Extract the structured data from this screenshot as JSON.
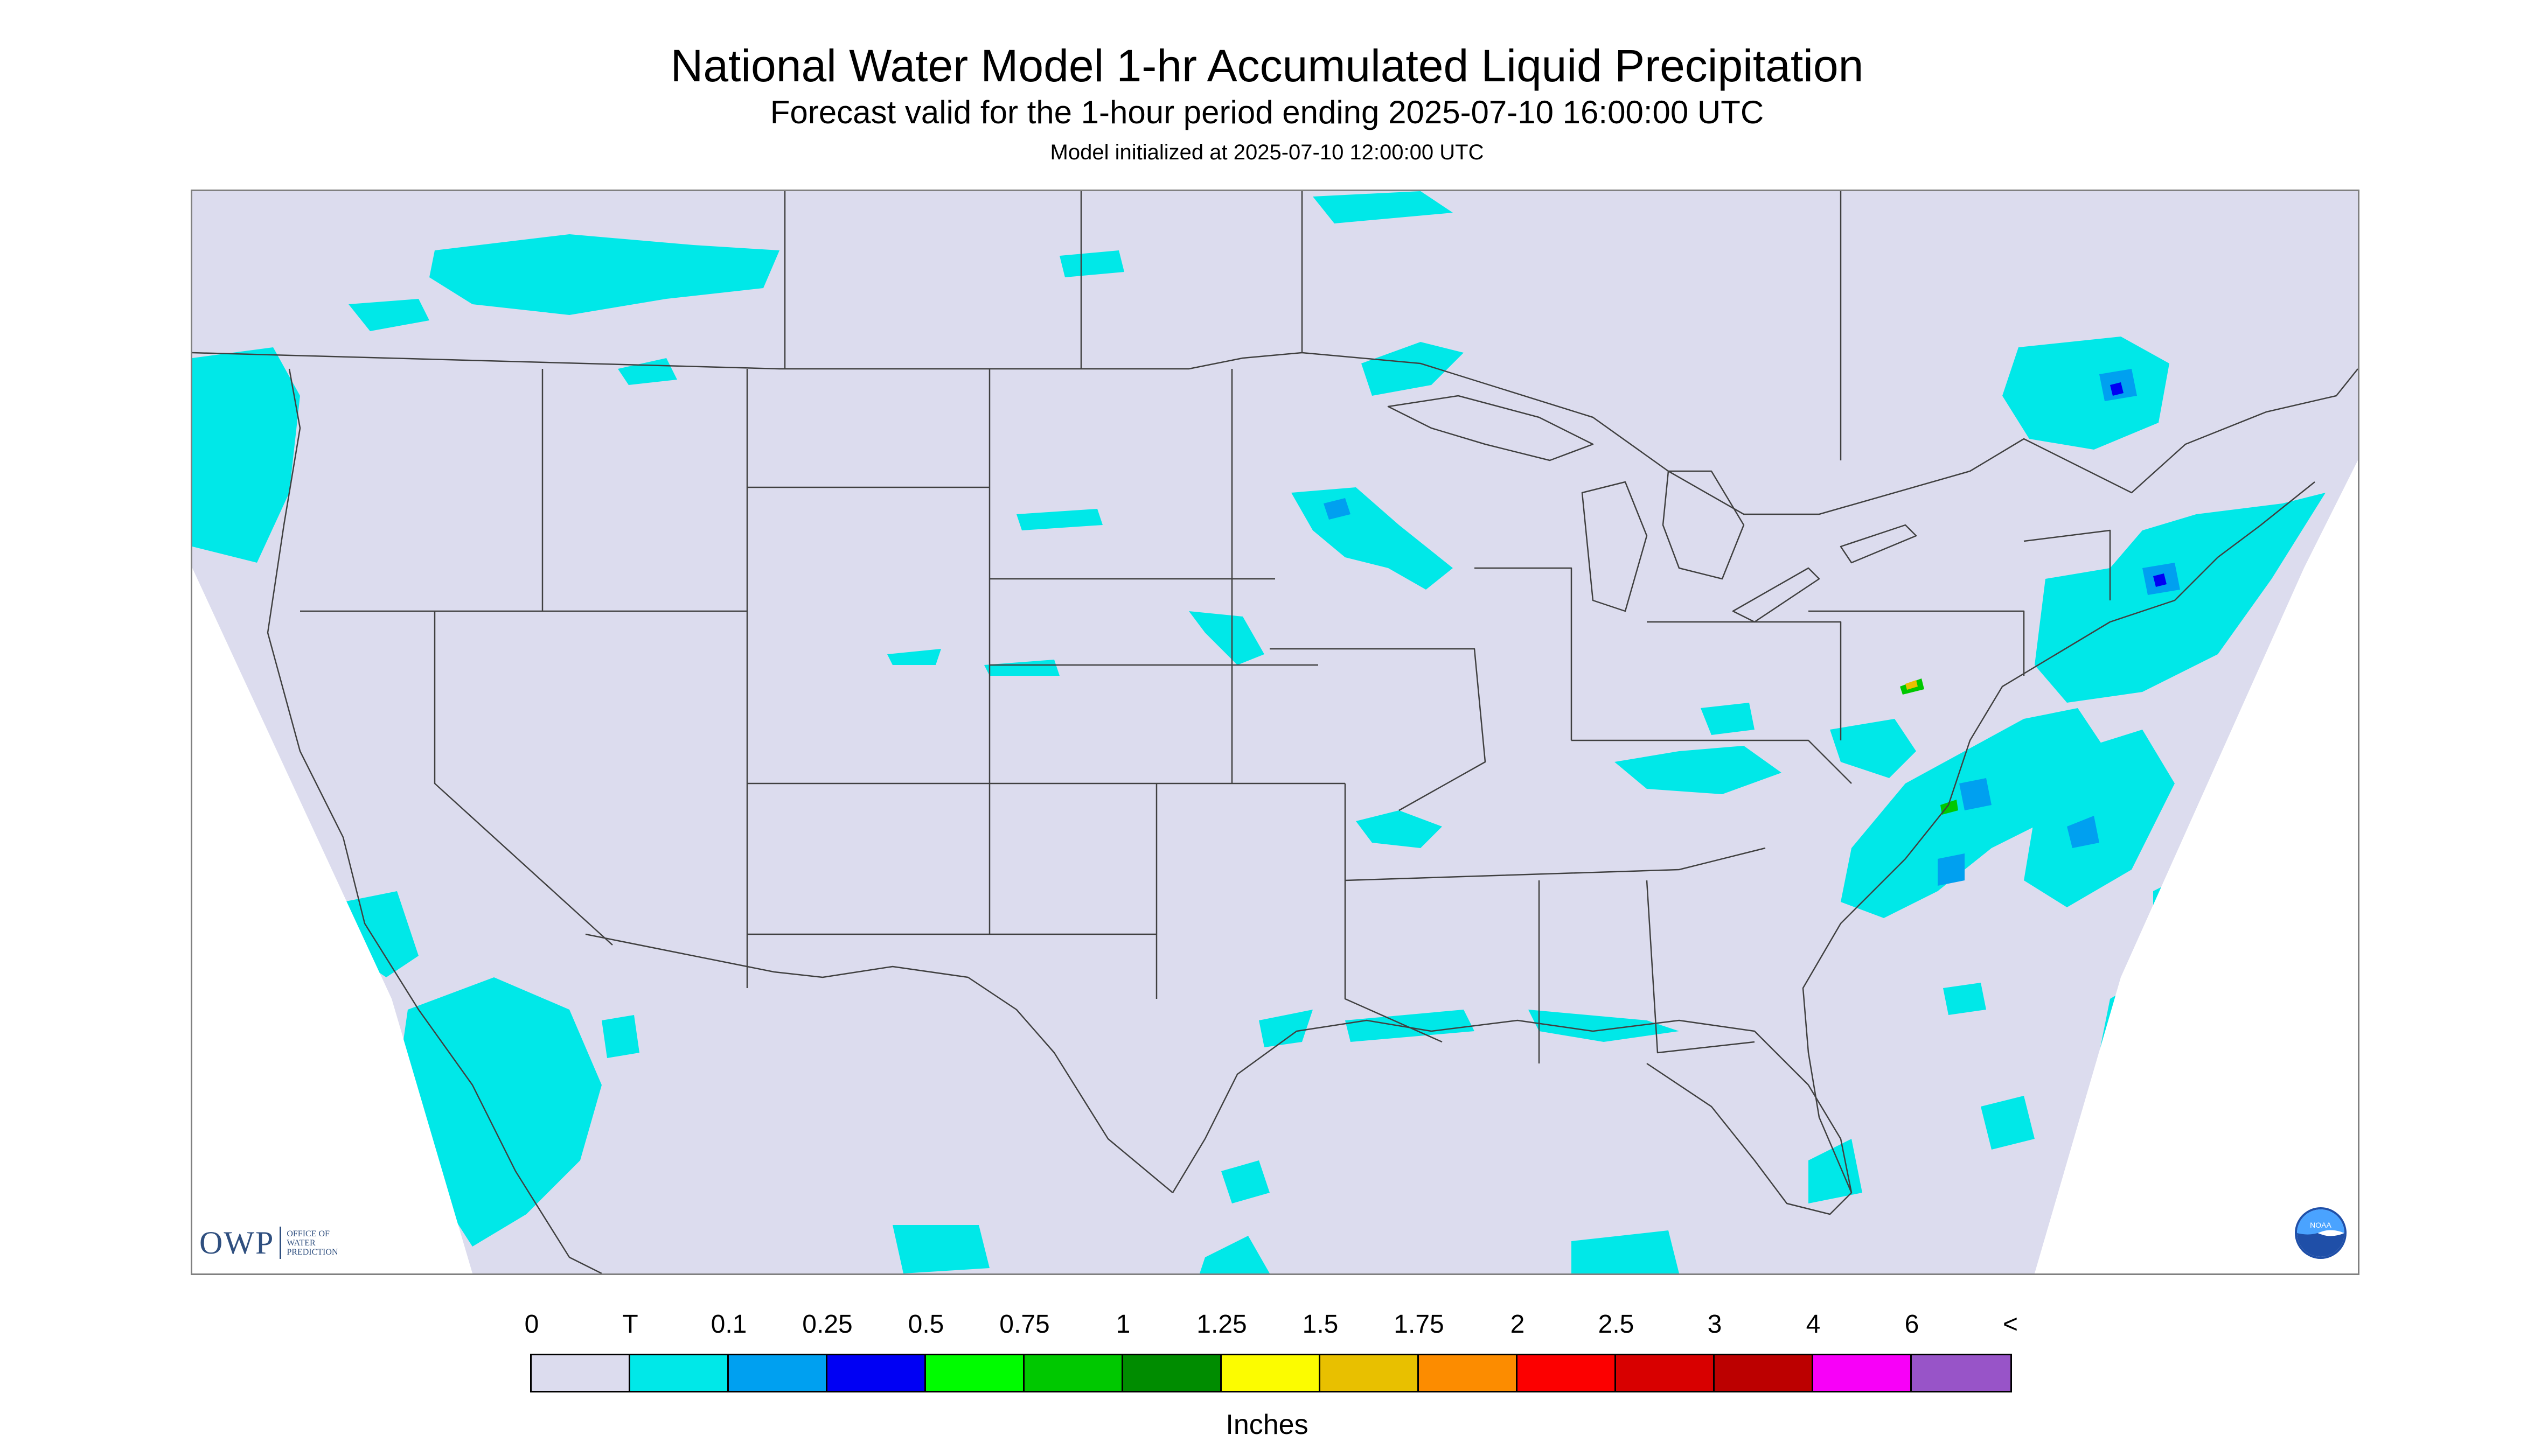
{
  "header": {
    "title": "National Water Model 1-hr Accumulated Liquid Precipitation",
    "subtitle": "Forecast valid for the 1-hour period ending 2025-07-10 16:00:00 UTC",
    "init_line": "Model initialized at 2025-07-10 12:00:00 UTC"
  },
  "logos": {
    "owp_mark": "OWP",
    "owp_lines": [
      "OFFICE OF",
      "WATER",
      "PREDICTION"
    ],
    "noaa_text": "NOAA"
  },
  "legend": {
    "units": "Inches",
    "tick_labels": [
      "0",
      "T",
      "0.1",
      "0.25",
      "0.5",
      "0.75",
      "1",
      "1.25",
      "1.5",
      "1.75",
      "2",
      "2.5",
      "3",
      "4",
      "6",
      "<"
    ],
    "colors": [
      "#dcdcee",
      "#00e8e8",
      "#00a0f0",
      "#0000f4",
      "#00fc00",
      "#00c800",
      "#008c00",
      "#fcfc00",
      "#e8c000",
      "#fc8c00",
      "#fc0000",
      "#d80000",
      "#bc0000",
      "#f800f8",
      "#9854c8"
    ]
  },
  "map": {
    "background_color": "#dcdcee",
    "outside_color": "#ffffff",
    "border_color": "#404040",
    "trace_color": "#00e8e8",
    "light_color": "#00a0f0",
    "moderate_color": "#0000f4",
    "heavy_color": "#00c800",
    "extreme_color": "#e8c000"
  }
}
